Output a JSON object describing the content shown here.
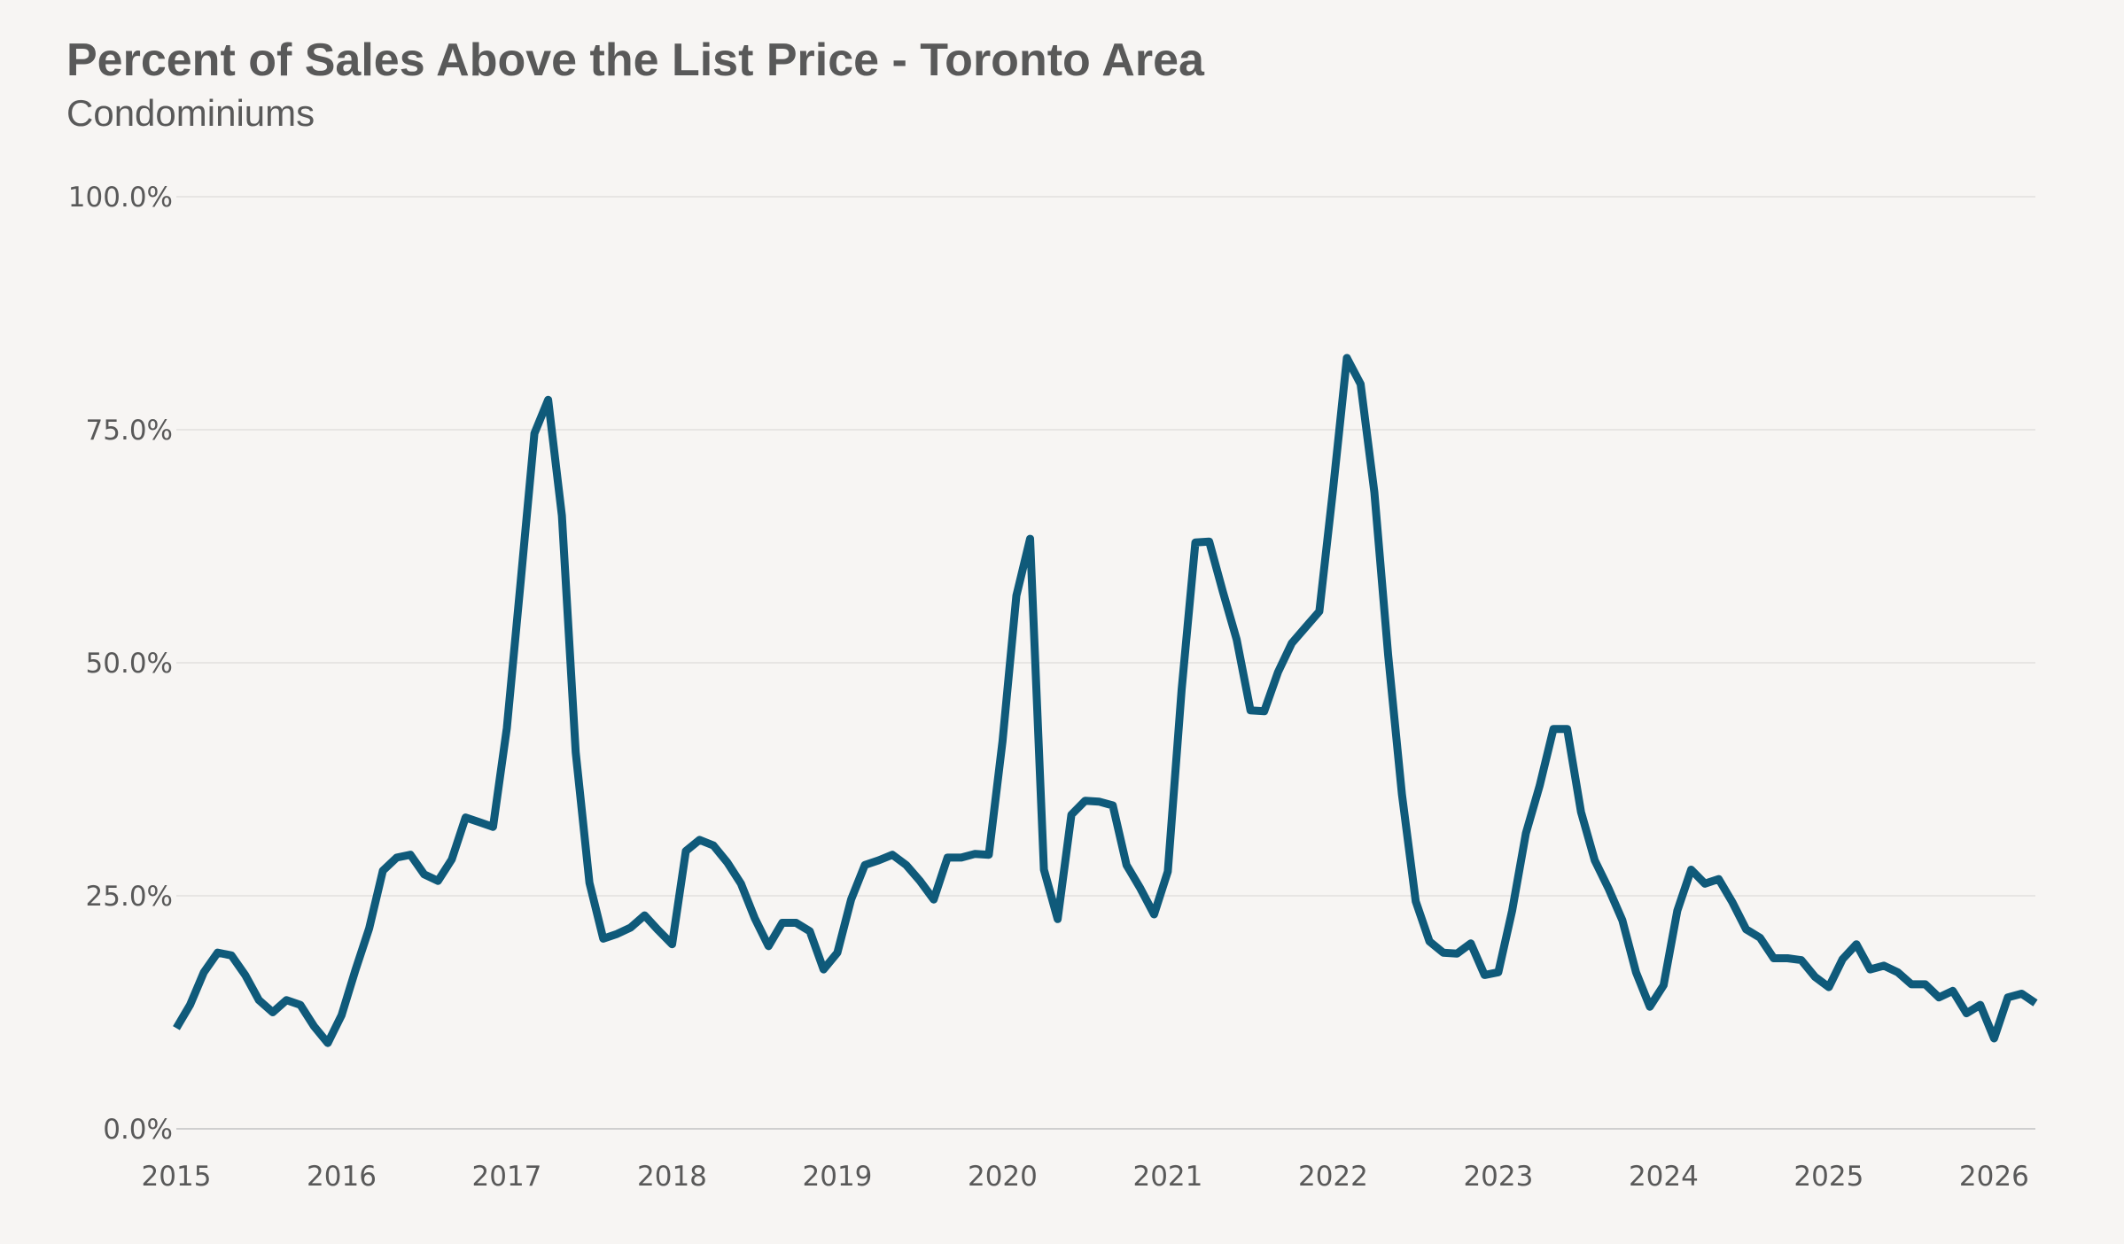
{
  "chart_data": {
    "type": "line",
    "title": "Percent of Sales Above the List Price - Toronto Area",
    "subtitle": "Condominiums",
    "xlabel": "",
    "ylabel": "",
    "x_tick_labels": [
      "2015",
      "2016",
      "2017",
      "2018",
      "2019",
      "2020",
      "2021",
      "2022",
      "2023",
      "2024",
      "2025",
      "2026"
    ],
    "y_tick_labels": [
      "0.0%",
      "25.0%",
      "50.0%",
      "75.0%",
      "100.0%"
    ],
    "y_ticks": [
      0,
      25,
      50,
      75,
      100
    ],
    "ylim": [
      0,
      100
    ],
    "xlim": [
      "2015-01",
      "2026-04"
    ],
    "grid": true,
    "legend": "none",
    "series": [
      {
        "color": "#0f5a7a",
        "x": [
          "2015-01",
          "2015-02",
          "2015-03",
          "2015-04",
          "2015-05",
          "2015-06",
          "2015-07",
          "2015-08",
          "2015-09",
          "2015-10",
          "2015-11",
          "2015-12",
          "2016-01",
          "2016-02",
          "2016-03",
          "2016-04",
          "2016-05",
          "2016-06",
          "2016-07",
          "2016-08",
          "2016-09",
          "2016-10",
          "2016-11",
          "2016-12",
          "2017-01",
          "2017-02",
          "2017-03",
          "2017-04",
          "2017-05",
          "2017-06",
          "2017-07",
          "2017-08",
          "2017-09",
          "2017-10",
          "2017-11",
          "2017-12",
          "2018-01",
          "2018-02",
          "2018-03",
          "2018-04",
          "2018-05",
          "2018-06",
          "2018-07",
          "2018-08",
          "2018-09",
          "2018-10",
          "2018-11",
          "2018-12",
          "2019-01",
          "2019-02",
          "2019-03",
          "2019-04",
          "2019-05",
          "2019-06",
          "2019-07",
          "2019-08",
          "2019-09",
          "2019-10",
          "2019-11",
          "2019-12",
          "2020-01",
          "2020-02",
          "2020-03",
          "2020-04",
          "2020-05",
          "2020-06",
          "2020-07",
          "2020-08",
          "2020-09",
          "2020-10",
          "2020-11",
          "2020-12",
          "2021-01",
          "2021-02",
          "2021-03",
          "2021-04",
          "2021-05",
          "2021-06",
          "2021-07",
          "2021-08",
          "2021-09",
          "2021-10",
          "2021-11",
          "2021-12",
          "2022-01",
          "2022-02",
          "2022-03",
          "2022-04",
          "2022-05",
          "2022-06",
          "2022-07",
          "2022-08",
          "2022-09",
          "2022-10",
          "2022-11",
          "2022-12",
          "2023-01",
          "2023-02",
          "2023-03",
          "2023-04",
          "2023-05",
          "2023-06",
          "2023-07",
          "2023-08",
          "2023-09",
          "2023-10",
          "2023-11",
          "2023-12",
          "2024-01",
          "2024-02",
          "2024-03",
          "2024-04",
          "2024-05",
          "2024-06",
          "2024-07",
          "2024-08",
          "2024-09",
          "2024-10",
          "2024-11",
          "2024-12",
          "2025-01",
          "2025-02",
          "2025-03",
          "2025-04",
          "2025-05",
          "2025-06",
          "2025-07",
          "2025-08",
          "2025-09",
          "2025-10",
          "2025-11",
          "2025-12",
          "2026-01",
          "2026-02",
          "2026-03",
          "2026-04"
        ],
        "values": [
          10.8,
          13.3,
          16.8,
          18.9,
          18.6,
          16.5,
          13.8,
          12.5,
          13.8,
          13.3,
          11.0,
          9.2,
          12.2,
          17.0,
          21.5,
          27.7,
          29.1,
          29.4,
          27.3,
          26.6,
          28.9,
          33.4,
          32.9,
          32.4,
          43.0,
          58.6,
          74.6,
          78.2,
          65.8,
          40.4,
          26.4,
          20.4,
          20.9,
          21.6,
          22.9,
          21.3,
          19.8,
          29.8,
          31.0,
          30.4,
          28.6,
          26.3,
          22.6,
          19.6,
          22.1,
          22.1,
          21.2,
          17.1,
          18.9,
          24.6,
          28.3,
          28.8,
          29.4,
          28.3,
          26.6,
          24.6,
          29.1,
          29.1,
          29.5,
          29.4,
          41.6,
          57.2,
          63.3,
          27.8,
          22.5,
          33.7,
          35.2,
          35.1,
          34.7,
          28.3,
          25.8,
          23.0,
          27.6,
          47.1,
          62.9,
          63.0,
          57.6,
          52.5,
          44.9,
          44.8,
          49.0,
          52.1,
          53.8,
          55.5,
          68.6,
          82.7,
          79.9,
          68.3,
          50.8,
          35.9,
          24.4,
          20.1,
          18.9,
          18.8,
          19.9,
          16.5,
          16.8,
          23.4,
          31.7,
          36.8,
          42.9,
          42.9,
          34.0,
          28.8,
          25.8,
          22.4,
          16.8,
          13.1,
          15.4,
          23.4,
          27.8,
          26.3,
          26.8,
          24.3,
          21.4,
          20.5,
          18.3,
          18.3,
          18.1,
          16.3,
          15.2,
          18.2,
          19.8,
          17.1,
          17.5,
          16.8,
          15.5,
          15.5,
          14.1,
          14.8,
          12.4,
          13.3,
          9.7,
          14.1,
          14.5,
          13.5
        ]
      }
    ]
  }
}
